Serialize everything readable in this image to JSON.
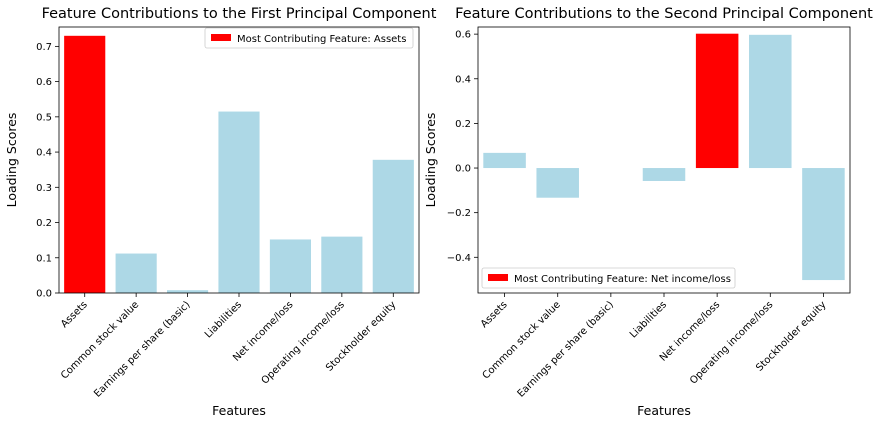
{
  "chart_data": [
    {
      "type": "bar",
      "title": "Feature Contributions to the First Principal Component",
      "xlabel": "Features",
      "ylabel": "Loading Scores",
      "categories": [
        "Assets",
        "Common stock value",
        "Earnings per share (basic)",
        "Liabilities",
        "Net income/loss",
        "Operating income/loss",
        "Stockholder equity"
      ],
      "values": [
        0.73,
        0.112,
        0.008,
        0.515,
        0.152,
        0.16,
        0.378
      ],
      "ylim": [
        0,
        0.755
      ],
      "yticks": [
        "0.0",
        "0.1",
        "0.2",
        "0.3",
        "0.4",
        "0.5",
        "0.6",
        "0.7"
      ],
      "highlight_index": 0,
      "bar_color": "#add8e6",
      "highlight_color": "#ff0000",
      "legend": "Most Contributing Feature: Assets",
      "legend_position": "upper right",
      "grid": false
    },
    {
      "type": "bar",
      "title": "Feature Contributions to the Second Principal Component",
      "xlabel": "Features",
      "ylabel": "Loading Scores",
      "categories": [
        "Assets",
        "Common stock value",
        "Earnings per share (basic)",
        "Liabilities",
        "Net income/loss",
        "Operating income/loss",
        "Stockholder equity"
      ],
      "values": [
        0.068,
        -0.133,
        0.0,
        -0.058,
        0.602,
        0.597,
        -0.502
      ],
      "ylim": [
        -0.56,
        0.632
      ],
      "yticks": [
        "−0.4",
        "−0.2",
        "0.0",
        "0.2",
        "0.4",
        "0.6"
      ],
      "highlight_index": 4,
      "bar_color": "#add8e6",
      "highlight_color": "#ff0000",
      "legend": "Most Contributing Feature: Net income/loss",
      "legend_position": "lower left",
      "grid": false
    }
  ]
}
